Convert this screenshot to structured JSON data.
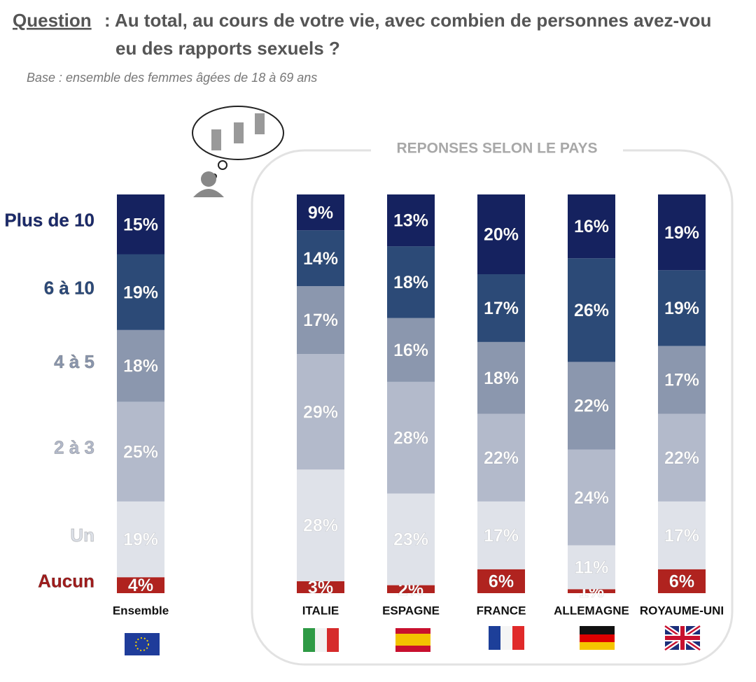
{
  "chart_data": {
    "type": "stacked-bar",
    "question_label": "Question",
    "question_lines": [
      ": Au total, au cours de votre vie, avec combien de personnes avez-vou",
      "eu des rapports sexuels ?"
    ],
    "subtitle": "Base :  ensemble des femmes âgées de 18 à 69 ans",
    "group_title": "REPONSES SELON  LE PAYS",
    "categories": [
      "Ensemble",
      "ITALIE",
      "ESPAGNE",
      "FRANCE",
      "ALLEMAGNE",
      "ROYAUME-UNI"
    ],
    "ylim": [
      0,
      100
    ],
    "series": [
      {
        "name": "Aucun",
        "color": "#b0231f",
        "label_color": "#a11c1c",
        "values": [
          4,
          3,
          2,
          6,
          1,
          6
        ],
        "value_labels": [
          "4%",
          "3%",
          "2%",
          "6%",
          "1%",
          "6%"
        ]
      },
      {
        "name": "Un",
        "color": "#dfe2e9",
        "label_color": "#dde1e8",
        "values": [
          19,
          28,
          23,
          17,
          11,
          17
        ],
        "value_labels": [
          "19%",
          "28%",
          "23%",
          "17%",
          "11%",
          "17%"
        ]
      },
      {
        "name": "2 à 3",
        "color": "#b3bacb",
        "label_color": "#b2b9ca",
        "values": [
          25,
          29,
          28,
          22,
          24,
          22
        ],
        "value_labels": [
          "25%",
          "29%",
          "28%",
          "22%",
          "24%",
          "22%"
        ]
      },
      {
        "name": "4 à 5",
        "color": "#8b97ae",
        "label_color": "#8a96ad",
        "values": [
          18,
          17,
          16,
          18,
          22,
          17
        ],
        "value_labels": [
          "18%",
          "17%",
          "16%",
          "18%",
          "22%",
          "17%"
        ]
      },
      {
        "name": "6 à 10",
        "color": "#2c4a77",
        "label_color": "#2c4a7a",
        "values": [
          19,
          14,
          18,
          17,
          26,
          19
        ],
        "value_labels": [
          "19%",
          "14%",
          "18%",
          "17%",
          "26%",
          "19%"
        ]
      },
      {
        "name": "Plus de 10",
        "color": "#15225f",
        "label_color": "#1b2a6b",
        "values": [
          15,
          9,
          13,
          20,
          16,
          19
        ],
        "value_labels": [
          "15%",
          "9%",
          "13%",
          "20%",
          "16%",
          "19%"
        ]
      }
    ]
  }
}
